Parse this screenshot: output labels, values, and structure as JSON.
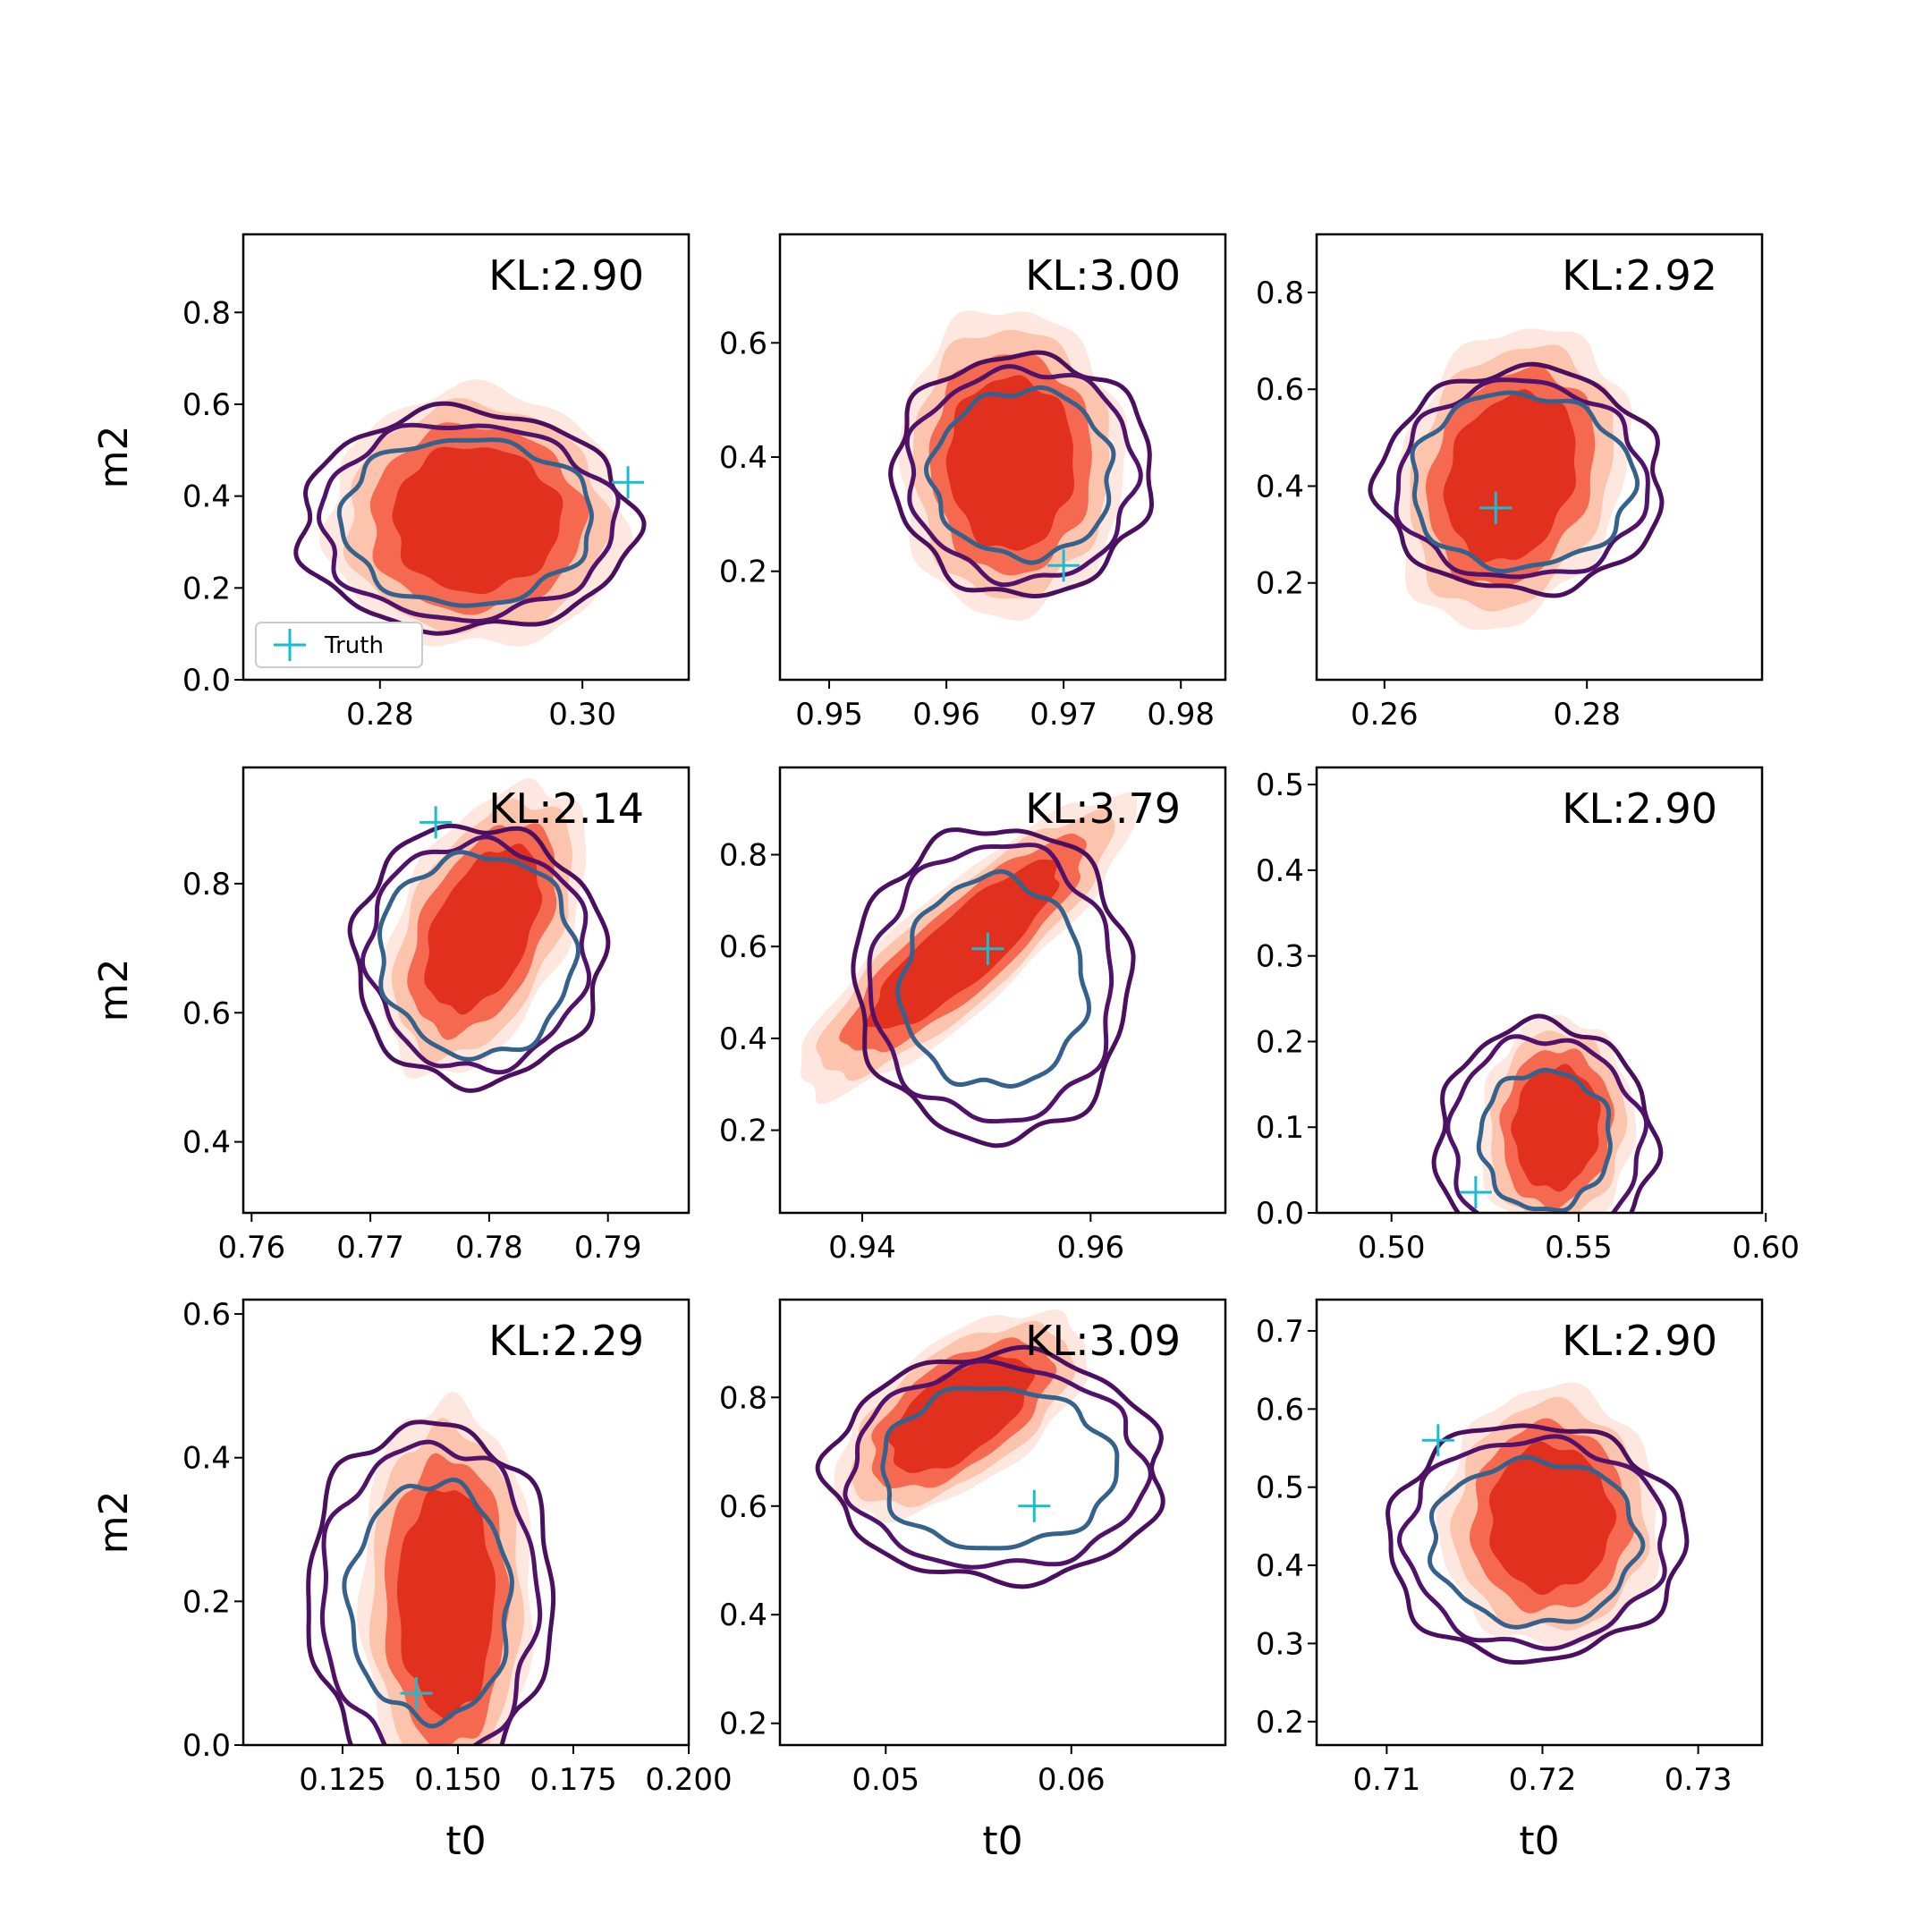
{
  "figure": {
    "legend": {
      "label": "Truth",
      "marker": "+",
      "color": "#17becf"
    }
  },
  "colors": {
    "fill_levels": [
      "#fde7de",
      "#fcc4ac",
      "#f4694f",
      "#e2301f"
    ],
    "contour_outer": "#4a0f5e",
    "contour_mid": "#50126a",
    "contour_inner": "#35628c",
    "truth": "#17becf"
  },
  "chart_data": [
    {
      "type": "contour",
      "kl_label": "KL:2.90",
      "xlabel": "",
      "ylabel": "m2",
      "xlim": [
        0.2665,
        0.3105
      ],
      "ylim": [
        0.0,
        0.97
      ],
      "xticks": [
        {
          "v": 0.28,
          "label": "0.28"
        },
        {
          "v": 0.3,
          "label": "0.30"
        }
      ],
      "yticks": [
        {
          "v": 0.0,
          "label": "0.0"
        },
        {
          "v": 0.2,
          "label": "0.2"
        },
        {
          "v": 0.4,
          "label": "0.4"
        },
        {
          "v": 0.6,
          "label": "0.6"
        },
        {
          "v": 0.8,
          "label": "0.8"
        }
      ],
      "truth": {
        "x": 0.3045,
        "y": 0.43
      },
      "legend": true,
      "posterior": {
        "cx": 0.2895,
        "cy": 0.35,
        "rx": 0.0115,
        "ry": 0.22,
        "tilt": 0
      },
      "reference": {
        "cx": 0.2885,
        "cy": 0.345,
        "rx": 0.0165,
        "ry": 0.24,
        "tilt": 0
      },
      "contour_inner_scale": 0.75
    },
    {
      "type": "contour",
      "kl_label": "KL:3.00",
      "xlabel": "",
      "ylabel": "",
      "xlim": [
        0.9458,
        0.9838
      ],
      "ylim": [
        0.01,
        0.79
      ],
      "xticks": [
        {
          "v": 0.95,
          "label": "0.95"
        },
        {
          "v": 0.96,
          "label": "0.96"
        },
        {
          "v": 0.97,
          "label": "0.97"
        },
        {
          "v": 0.98,
          "label": "0.98"
        }
      ],
      "yticks": [
        {
          "v": 0.2,
          "label": "0.2"
        },
        {
          "v": 0.4,
          "label": "0.4"
        },
        {
          "v": 0.6,
          "label": "0.6"
        }
      ],
      "truth": {
        "x": 0.97,
        "y": 0.21
      },
      "legend": false,
      "posterior": {
        "cx": 0.9655,
        "cy": 0.39,
        "rx": 0.0075,
        "ry": 0.21,
        "tilt": 0
      },
      "reference": {
        "cx": 0.9665,
        "cy": 0.37,
        "rx": 0.011,
        "ry": 0.21,
        "tilt": 0
      },
      "contour_inner_scale": 0.7
    },
    {
      "type": "contour",
      "kl_label": "KL:2.92",
      "xlabel": "",
      "ylabel": "",
      "xlim": [
        0.2533,
        0.2973
      ],
      "ylim": [
        0.0,
        0.92
      ],
      "xticks": [
        {
          "v": 0.26,
          "label": "0.26"
        },
        {
          "v": 0.28,
          "label": "0.28"
        }
      ],
      "yticks": [
        {
          "v": 0.2,
          "label": "0.2"
        },
        {
          "v": 0.4,
          "label": "0.4"
        },
        {
          "v": 0.6,
          "label": "0.6"
        },
        {
          "v": 0.8,
          "label": "0.8"
        }
      ],
      "truth": {
        "x": 0.271,
        "y": 0.355
      },
      "legend": false,
      "posterior": {
        "cx": 0.2725,
        "cy": 0.42,
        "rx": 0.0085,
        "ry": 0.25,
        "tilt": 0.35
      },
      "reference": {
        "cx": 0.2735,
        "cy": 0.41,
        "rx": 0.014,
        "ry": 0.23,
        "tilt": 0
      },
      "contour_inner_scale": 0.78
    },
    {
      "type": "contour",
      "kl_label": "KL:2.14",
      "xlabel": "",
      "ylabel": "m2",
      "xlim": [
        0.7593,
        0.7968
      ],
      "ylim": [
        0.29,
        0.98
      ],
      "xticks": [
        {
          "v": 0.76,
          "label": "0.76"
        },
        {
          "v": 0.77,
          "label": "0.77"
        },
        {
          "v": 0.78,
          "label": "0.78"
        },
        {
          "v": 0.79,
          "label": "0.79"
        }
      ],
      "yticks": [
        {
          "v": 0.4,
          "label": "0.4"
        },
        {
          "v": 0.6,
          "label": "0.6"
        },
        {
          "v": 0.8,
          "label": "0.8"
        }
      ],
      "truth": {
        "x": 0.7755,
        "y": 0.895
      },
      "legend": false,
      "posterior": {
        "cx": 0.7795,
        "cy": 0.73,
        "rx": 0.0055,
        "ry": 0.19,
        "tilt": 0.45
      },
      "reference": {
        "cx": 0.779,
        "cy": 0.69,
        "rx": 0.0105,
        "ry": 0.2,
        "tilt": 0
      },
      "contour_inner_scale": 0.78
    },
    {
      "type": "contour",
      "kl_label": "KL:3.79",
      "xlabel": "",
      "ylabel": "",
      "xlim": [
        0.9328,
        0.9718
      ],
      "ylim": [
        0.02,
        0.99
      ],
      "xticks": [
        {
          "v": 0.94,
          "label": "0.94"
        },
        {
          "v": 0.96,
          "label": "0.96"
        }
      ],
      "yticks": [
        {
          "v": 0.2,
          "label": "0.2"
        },
        {
          "v": 0.4,
          "label": "0.4"
        },
        {
          "v": 0.6,
          "label": "0.6"
        },
        {
          "v": 0.8,
          "label": "0.8"
        }
      ],
      "truth": {
        "x": 0.951,
        "y": 0.595
      },
      "legend": false,
      "posterior": {
        "cx": 0.949,
        "cy": 0.6,
        "rx": 0.004,
        "ry": 0.37,
        "tilt": 0.85
      },
      "reference": {
        "cx": 0.9515,
        "cy": 0.52,
        "rx": 0.012,
        "ry": 0.34,
        "tilt": 0
      },
      "contour_inner_scale": 0.67
    },
    {
      "type": "contour",
      "kl_label": "KL:2.90",
      "xlabel": "",
      "ylabel": "",
      "xlim": [
        0.48,
        0.599
      ],
      "ylim": [
        0.0,
        0.52
      ],
      "xticks": [
        {
          "v": 0.5,
          "label": "0.50"
        },
        {
          "v": 0.55,
          "label": "0.55"
        },
        {
          "v": 0.6,
          "label": "0.60"
        }
      ],
      "yticks": [
        {
          "v": 0.0,
          "label": "0.0"
        },
        {
          "v": 0.1,
          "label": "0.1"
        },
        {
          "v": 0.2,
          "label": "0.2"
        },
        {
          "v": 0.3,
          "label": "0.3"
        },
        {
          "v": 0.4,
          "label": "0.4"
        },
        {
          "v": 0.5,
          "label": "0.5"
        }
      ],
      "truth": {
        "x": 0.5225,
        "y": 0.024
      },
      "legend": false,
      "posterior": {
        "cx": 0.544,
        "cy": 0.1,
        "rx": 0.016,
        "ry": 0.1,
        "tilt": 0.1
      },
      "reference": {
        "cx": 0.541,
        "cy": 0.085,
        "rx": 0.029,
        "ry": 0.135,
        "tilt": 0
      },
      "contour_inner_scale": 0.6
    },
    {
      "type": "contour",
      "kl_label": "KL:2.29",
      "xlabel": "t0",
      "ylabel": "m2",
      "xlim": [
        0.1035,
        0.2
      ],
      "ylim": [
        0.0,
        0.62
      ],
      "xticks": [
        {
          "v": 0.125,
          "label": "0.125"
        },
        {
          "v": 0.15,
          "label": "0.150"
        },
        {
          "v": 0.175,
          "label": "0.175"
        },
        {
          "v": 0.2,
          "label": "0.200"
        }
      ],
      "yticks": [
        {
          "v": 0.0,
          "label": "0.0"
        },
        {
          "v": 0.2,
          "label": "0.2"
        },
        {
          "v": 0.4,
          "label": "0.4"
        },
        {
          "v": 0.6,
          "label": "0.6"
        }
      ],
      "truth": {
        "x": 0.141,
        "y": 0.072
      },
      "legend": false,
      "posterior": {
        "cx": 0.1475,
        "cy": 0.2,
        "rx": 0.0145,
        "ry": 0.22,
        "tilt": 0
      },
      "reference": {
        "cx": 0.144,
        "cy": 0.2,
        "rx": 0.0265,
        "ry": 0.25,
        "tilt": 0
      },
      "contour_inner_scale": 0.66
    },
    {
      "type": "contour",
      "kl_label": "KL:3.09",
      "xlabel": "t0",
      "ylabel": "",
      "xlim": [
        0.0443,
        0.0683
      ],
      "ylim": [
        0.16,
        0.98
      ],
      "xticks": [
        {
          "v": 0.05,
          "label": "0.05"
        },
        {
          "v": 0.06,
          "label": "0.06"
        }
      ],
      "yticks": [
        {
          "v": 0.2,
          "label": "0.2"
        },
        {
          "v": 0.4,
          "label": "0.4"
        },
        {
          "v": 0.6,
          "label": "0.6"
        },
        {
          "v": 0.8,
          "label": "0.8"
        }
      ],
      "truth": {
        "x": 0.058,
        "y": 0.6
      },
      "legend": false,
      "posterior": {
        "cx": 0.054,
        "cy": 0.77,
        "rx": 0.003,
        "ry": 0.21,
        "tilt": 0.95
      },
      "reference": {
        "cx": 0.056,
        "cy": 0.67,
        "rx": 0.009,
        "ry": 0.21,
        "tilt": 0
      },
      "contour_inner_scale": 0.7
    },
    {
      "type": "contour",
      "kl_label": "KL:2.90",
      "xlabel": "t0",
      "ylabel": "",
      "xlim": [
        0.7055,
        0.7341
      ],
      "ylim": [
        0.17,
        0.74
      ],
      "xticks": [
        {
          "v": 0.71,
          "label": "0.71"
        },
        {
          "v": 0.72,
          "label": "0.72"
        },
        {
          "v": 0.73,
          "label": "0.73"
        }
      ],
      "yticks": [
        {
          "v": 0.2,
          "label": "0.2"
        },
        {
          "v": 0.3,
          "label": "0.3"
        },
        {
          "v": 0.4,
          "label": "0.4"
        },
        {
          "v": 0.5,
          "label": "0.5"
        },
        {
          "v": 0.6,
          "label": "0.6"
        },
        {
          "v": 0.7,
          "label": "0.7"
        }
      ],
      "truth": {
        "x": 0.7133,
        "y": 0.56
      },
      "legend": false,
      "posterior": {
        "cx": 0.7205,
        "cy": 0.46,
        "rx": 0.0055,
        "ry": 0.13,
        "tilt": 0
      },
      "reference": {
        "cx": 0.7195,
        "cy": 0.43,
        "rx": 0.0095,
        "ry": 0.15,
        "tilt": 0
      },
      "contour_inner_scale": 0.7
    }
  ]
}
